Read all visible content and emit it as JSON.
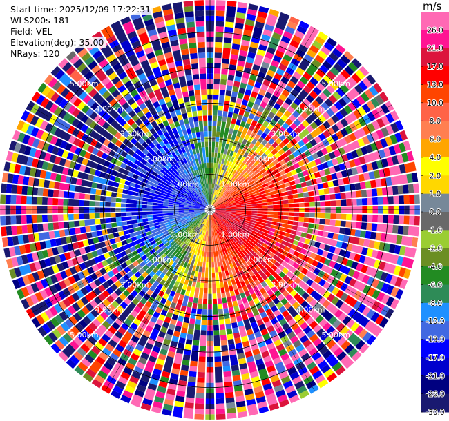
{
  "header": {
    "start_time": "Start time: 2025/12/09 17:22:31",
    "instrument": "WLS200s-181",
    "field": "Field: VEL",
    "elevation": "Elevation(deg): 35.00",
    "nrays": "NRays: 120"
  },
  "chart_data": {
    "type": "heatmap",
    "projection": "polar-ppi",
    "field": "VEL",
    "units": "m/s",
    "n_rays": 120,
    "elevation_deg": 35.0,
    "range_rings_km": [
      1.0,
      2.0,
      3.0,
      4.0,
      5.0
    ],
    "range_ring_labels": [
      "1.00km",
      "2.00km",
      "3.00km",
      "4.00km",
      "5.00km"
    ],
    "max_range_km": 5.9,
    "radial_pattern": "positive velocities (warm colors) toward east/southeast, negative (blue) toward west/northwest, increasing noise beyond ~2.5 km",
    "colorbar": {
      "levels": [
        -30,
        -26,
        -21,
        -17,
        -13,
        -10,
        -8,
        -6,
        -4,
        -2,
        -1,
        0,
        1,
        2,
        4,
        6,
        8,
        10,
        13,
        17,
        21,
        26,
        30
      ],
      "tick_labels": [
        "26.0",
        "21.0",
        "17.0",
        "13.0",
        "10.0",
        "8.0",
        "6.0",
        "4.0",
        "2.0",
        "1.0",
        "0.0",
        "-1.0",
        "-2.0",
        "-4.0",
        "-6.0",
        "-8.0",
        "-10.0",
        "-13.0",
        "-17.0",
        "-21.0",
        "-26.0",
        "-30.0"
      ],
      "colors": [
        "#191970",
        "#000080",
        "#0000cd",
        "#0000ff",
        "#4169e1",
        "#1e90ff",
        "#2e8b57",
        "#228b22",
        "#6b8e23",
        "#9acd32",
        "#696969",
        "#778899",
        "#ffd700",
        "#ffff00",
        "#ffa500",
        "#ff7f50",
        "#ff6347",
        "#ff4500",
        "#ff0000",
        "#dc143c",
        "#ff1493",
        "#ff69b4"
      ]
    }
  }
}
